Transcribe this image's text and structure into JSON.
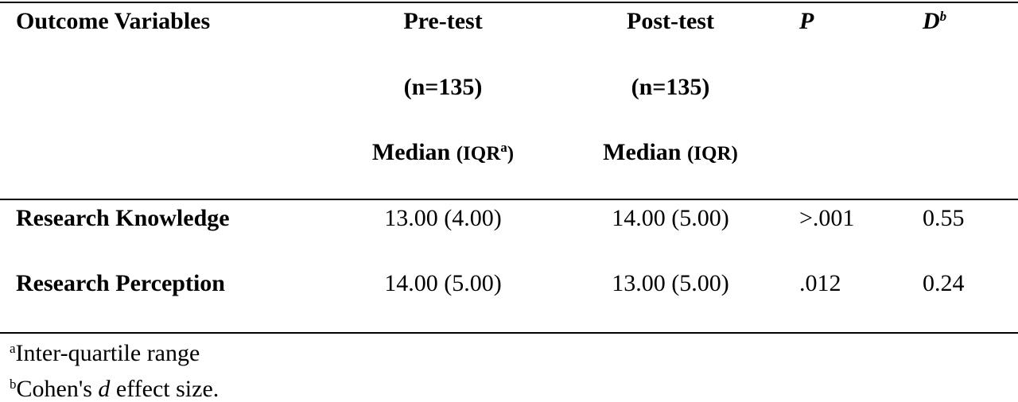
{
  "table": {
    "header": {
      "outcome": "Outcome Variables",
      "pre": {
        "label": "Pre-test",
        "n": "(n=135)",
        "stat": "Median",
        "paren": "(IQR",
        "sup": "a",
        "close": ")"
      },
      "post": {
        "label": "Post-test",
        "n": "(n=135)",
        "stat": "Median",
        "paren": "(IQR)"
      },
      "p": "P",
      "d": {
        "label": "D",
        "sup": "b"
      }
    },
    "rows": [
      [
        "Research Knowledge",
        "13.00 (4.00)",
        "14.00 (5.00)",
        ">.001",
        "0.55"
      ],
      [
        "Research Perception",
        "14.00 (5.00)",
        "13.00 (5.00)",
        ".012",
        "0.24"
      ]
    ],
    "footnotes": [
      {
        "mark": "a",
        "text": "Inter-quartile range"
      },
      {
        "mark": "b",
        "pre": "Cohen's ",
        "em": "d",
        "post": " effect size."
      }
    ]
  }
}
